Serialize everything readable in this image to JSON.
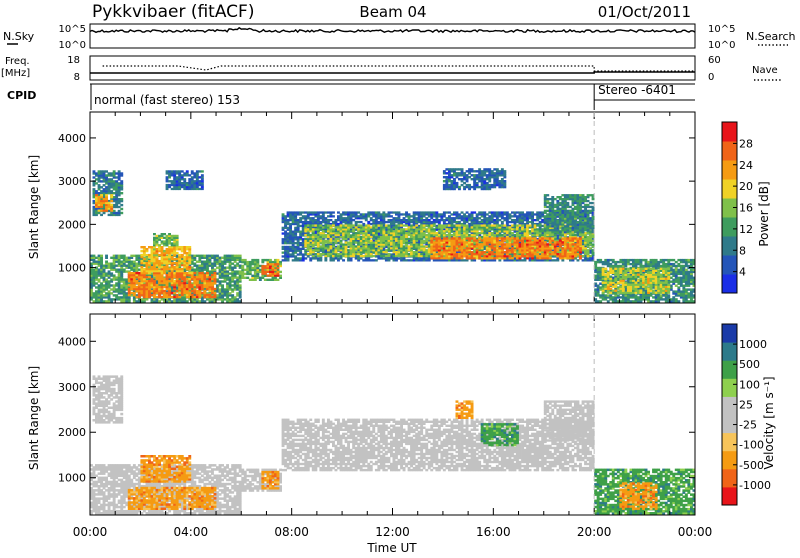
{
  "header": {
    "station": "Pykkvibaer (fitACF)",
    "beam": "Beam 04",
    "date": "01/Oct/2011"
  },
  "noise_panel": {
    "left_label": "N.Sky",
    "right_label": "N.Search",
    "left_ticks": [
      "10^5",
      "10^0"
    ],
    "right_ticks": [
      "10^5",
      "10^0"
    ]
  },
  "freq_panel": {
    "left_label": "Freq.",
    "left_unit": "[MHz]",
    "right_label": "Nave",
    "left_ticks": [
      "18",
      "8"
    ],
    "right_ticks": [
      "60",
      "0"
    ]
  },
  "cpid_panel": {
    "label": "CPID",
    "segments": [
      {
        "text": "normal (fast stereo) 153",
        "start_h": 0,
        "end_h": 20
      },
      {
        "text": "Stereo -6401",
        "start_h": 20,
        "end_h": 24
      }
    ]
  },
  "colors": {
    "power_scale": [
      "#1a2ee6",
      "#2455b8",
      "#2f7a8a",
      "#3e9c5e",
      "#7fc04a",
      "#f0d226",
      "#f59b12",
      "#f06418",
      "#e8141a"
    ],
    "velocity_scale": [
      "#e8141a",
      "#f06418",
      "#f59b12",
      "#f7c45a",
      "#c2c2c2",
      "#c2c2c2",
      "#8ed04e",
      "#3ea048",
      "#2c7a8a",
      "#1a3aa8"
    ],
    "ground_scatter": "#c2c2c2"
  },
  "chart_data": [
    {
      "type": "heatmap",
      "panel": "power",
      "title": "",
      "xlabel": "Time UT",
      "ylabel": "Slant Range [km]",
      "colorbar_label": "Power [dB]",
      "colorbar_ticks": [
        "4",
        "8",
        "12",
        "16",
        "20",
        "24",
        "28"
      ],
      "colorbar_range": [
        0,
        32
      ],
      "x_ticks": [
        "00:00",
        "04:00",
        "08:00",
        "12:00",
        "16:00",
        "20:00",
        "00:00"
      ],
      "xlim": [
        0,
        24
      ],
      "y_ticks": [
        "1000",
        "2000",
        "3000",
        "4000"
      ],
      "ylim": [
        180,
        4600
      ],
      "regions": [
        {
          "t0": 0.1,
          "t1": 1.3,
          "r0": 2200,
          "r1": 3250,
          "value": 8
        },
        {
          "t0": 0.2,
          "t1": 0.9,
          "r0": 2300,
          "r1": 2700,
          "value": 24
        },
        {
          "t0": 0.0,
          "t1": 6.0,
          "r0": 200,
          "r1": 1300,
          "value": 12
        },
        {
          "t0": 1.5,
          "t1": 5.0,
          "r0": 300,
          "r1": 900,
          "value": 26
        },
        {
          "t0": 2.0,
          "t1": 4.0,
          "r0": 900,
          "r1": 1500,
          "value": 22
        },
        {
          "t0": 2.5,
          "t1": 3.5,
          "r0": 1500,
          "r1": 1800,
          "value": 14
        },
        {
          "t0": 3.0,
          "t1": 4.5,
          "r0": 2800,
          "r1": 3250,
          "value": 6
        },
        {
          "t0": 6.0,
          "t1": 7.6,
          "r0": 700,
          "r1": 1200,
          "value": 14
        },
        {
          "t0": 6.8,
          "t1": 7.5,
          "r0": 800,
          "r1": 1100,
          "value": 28
        },
        {
          "t0": 7.6,
          "t1": 20.0,
          "r0": 1150,
          "r1": 2300,
          "value": 6
        },
        {
          "t0": 8.5,
          "t1": 20.0,
          "r0": 1250,
          "r1": 2000,
          "value": 16
        },
        {
          "t0": 13.5,
          "t1": 19.5,
          "r0": 1200,
          "r1": 1700,
          "value": 26
        },
        {
          "t0": 14.0,
          "t1": 16.5,
          "r0": 2800,
          "r1": 3300,
          "value": 6
        },
        {
          "t0": 18.0,
          "t1": 20.0,
          "r0": 1800,
          "r1": 2700,
          "value": 10
        },
        {
          "t0": 20.0,
          "t1": 24.0,
          "r0": 200,
          "r1": 1200,
          "value": 10
        },
        {
          "t0": 20.3,
          "t1": 23.0,
          "r0": 400,
          "r1": 1000,
          "value": 18
        }
      ]
    },
    {
      "type": "heatmap",
      "panel": "velocity",
      "title": "",
      "xlabel": "Time UT",
      "ylabel": "Slant Range [km]",
      "colorbar_label": "Velocity [m s⁻¹]",
      "colorbar_ticks": [
        "-1000",
        "-500",
        "-100",
        "-25",
        "25",
        "100",
        "500",
        "1000"
      ],
      "colorbar_range": [
        -1250,
        1250
      ],
      "x_ticks": [
        "00:00",
        "04:00",
        "08:00",
        "12:00",
        "16:00",
        "20:00",
        "00:00"
      ],
      "xlim": [
        0,
        24
      ],
      "y_ticks": [
        "1000",
        "2000",
        "3000",
        "4000"
      ],
      "ylim": [
        180,
        4600
      ],
      "regions": [
        {
          "t0": 0.1,
          "t1": 1.3,
          "r0": 2200,
          "r1": 3250,
          "value": 0
        },
        {
          "t0": 0.0,
          "t1": 6.0,
          "r0": 200,
          "r1": 1300,
          "value": 0
        },
        {
          "t0": 1.5,
          "t1": 5.0,
          "r0": 300,
          "r1": 800,
          "value": -180
        },
        {
          "t0": 2.0,
          "t1": 4.0,
          "r0": 900,
          "r1": 1500,
          "value": -150
        },
        {
          "t0": 6.0,
          "t1": 7.6,
          "r0": 700,
          "r1": 1200,
          "value": 0
        },
        {
          "t0": 6.8,
          "t1": 7.5,
          "r0": 750,
          "r1": 1150,
          "value": -200
        },
        {
          "t0": 7.6,
          "t1": 20.0,
          "r0": 1150,
          "r1": 2300,
          "value": 0
        },
        {
          "t0": 15.5,
          "t1": 17.0,
          "r0": 1700,
          "r1": 2200,
          "value": 150
        },
        {
          "t0": 14.5,
          "t1": 15.2,
          "r0": 2300,
          "r1": 2700,
          "value": -200
        },
        {
          "t0": 18.0,
          "t1": 20.0,
          "r0": 1800,
          "r1": 2700,
          "value": 0
        },
        {
          "t0": 20.0,
          "t1": 24.0,
          "r0": 200,
          "r1": 1200,
          "value": 200
        },
        {
          "t0": 21.0,
          "t1": 22.5,
          "r0": 300,
          "r1": 900,
          "value": -200
        }
      ]
    }
  ]
}
